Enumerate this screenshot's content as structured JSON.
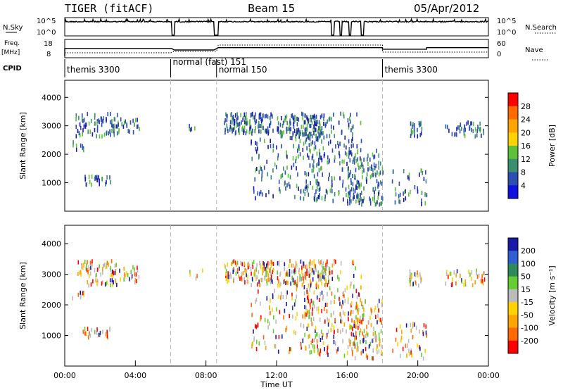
{
  "header": {
    "station": "TIGER (fitACF)",
    "beam": "Beam 15",
    "date": "05/Apr/2012"
  },
  "strips": {
    "nsky_label": "N.Sky",
    "nsky_ticks": [
      "10^5",
      "10^0"
    ],
    "nsearch_label": "N.Search",
    "nsearch_ticks": [
      "10^5",
      "10^0"
    ],
    "freq_label": "Freq.",
    "freq_unit": "[MHz]",
    "freq_ticks": [
      "18",
      "8"
    ],
    "nave_label": "Nave",
    "nave_ticks": [
      "60",
      "0"
    ],
    "cpid_label": "CPID",
    "cpid_segments": [
      {
        "name": "themis 3300",
        "start": 0.0,
        "end": 6.0
      },
      {
        "name": "normal (fast) 151",
        "start": 6.0,
        "end": 8.6
      },
      {
        "name": "normal 150",
        "start": 8.6,
        "end": 18.0
      },
      {
        "name": "themis 3300",
        "start": 18.0,
        "end": 24.0
      }
    ]
  },
  "chart_data": [
    {
      "type": "heatmap",
      "name": "power",
      "ylabel": "Slant Range [km]",
      "xlim": [
        0,
        24
      ],
      "ylim": [
        0,
        4600
      ],
      "yticks": [
        1000,
        2000,
        3000,
        4000
      ],
      "colorbar_label": "Power [dB]",
      "colorbar_ticks": [
        "28",
        "24",
        "20",
        "16",
        "12",
        "8",
        "4"
      ],
      "colorbar_colors": [
        "#ff0000",
        "#ff6a00",
        "#ffa500",
        "#ffd200",
        "#5fc03a",
        "#3c8f6e",
        "#2a4fb0",
        "#1010e0"
      ]
    },
    {
      "type": "heatmap",
      "name": "velocity",
      "ylabel": "Slant Range [km]",
      "xlabel": "Time UT",
      "xlim": [
        0,
        24
      ],
      "ylim": [
        0,
        4600
      ],
      "yticks": [
        1000,
        2000,
        3000,
        4000
      ],
      "xticks": [
        "00:00",
        "04:00",
        "08:00",
        "12:00",
        "16:00",
        "20:00",
        "00:00"
      ],
      "colorbar_label": "Velocity [m s⁻¹]",
      "colorbar_ticks": [
        "200",
        "100",
        "50",
        "15",
        "-15",
        "-50",
        "-100",
        "-200"
      ],
      "colorbar_colors": [
        "#1a1aa8",
        "#2f5fd0",
        "#2e8a5a",
        "#66cc33",
        "#bbbbbb",
        "#ffd200",
        "#ffa500",
        "#ff6a00",
        "#ff0000"
      ]
    }
  ]
}
